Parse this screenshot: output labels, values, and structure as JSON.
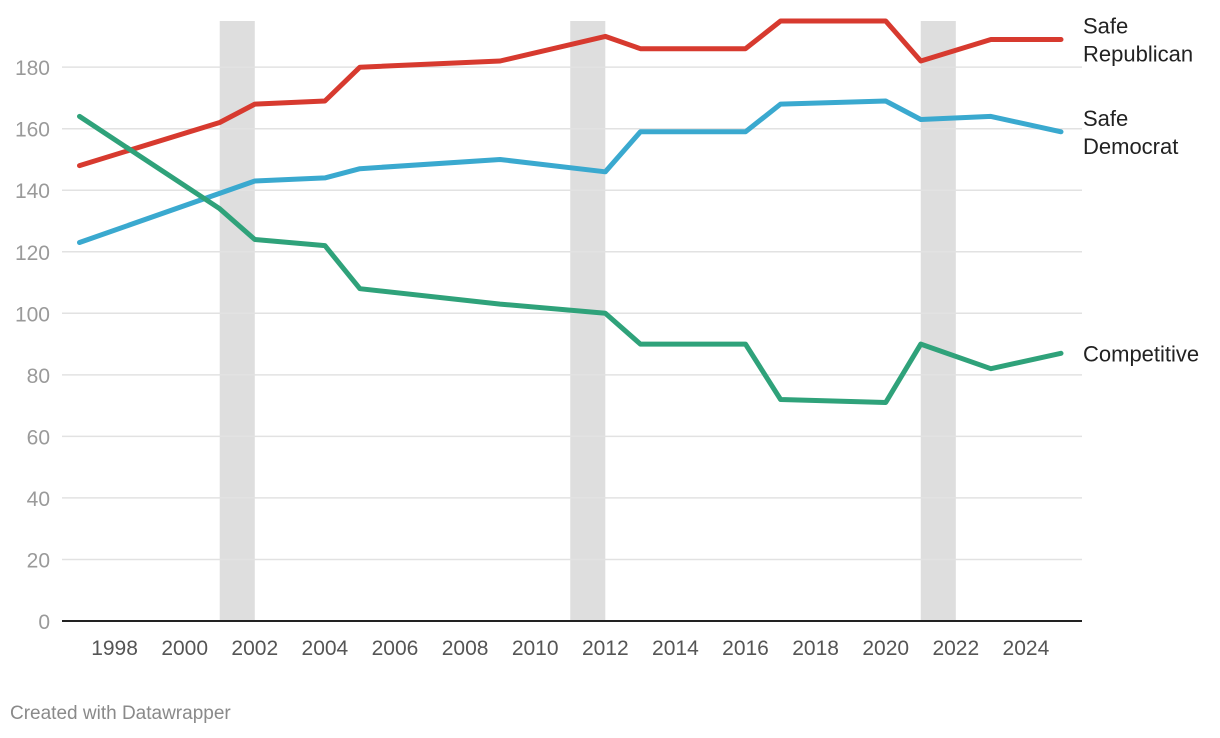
{
  "chart_data": {
    "type": "line",
    "x_ticks": [
      1998,
      2000,
      2002,
      2004,
      2006,
      2008,
      2010,
      2012,
      2014,
      2016,
      2018,
      2020,
      2022,
      2024
    ],
    "y_ticks": [
      0,
      20,
      40,
      60,
      80,
      100,
      120,
      140,
      160,
      180
    ],
    "xlim": [
      1996.5,
      2025.6
    ],
    "ylim": [
      0,
      195
    ],
    "grid": true,
    "highlight_bands": [
      [
        2001,
        2002
      ],
      [
        2011,
        2012
      ],
      [
        2021,
        2022
      ]
    ],
    "series": [
      {
        "name": "Safe Republican",
        "label_lines": [
          "Safe",
          "Republican"
        ],
        "color": "#d73a2f",
        "x": [
          1997,
          2001,
          2002,
          2004,
          2005,
          2009,
          2012,
          2013,
          2016,
          2017,
          2020,
          2021,
          2023,
          2025
        ],
        "y": [
          148,
          162,
          168,
          169,
          180,
          182,
          190,
          186,
          186,
          195,
          195,
          182,
          189,
          189
        ]
      },
      {
        "name": "Safe Democrat",
        "label_lines": [
          "Safe",
          "Democrat"
        ],
        "color": "#3aa9cf",
        "x": [
          1997,
          2002,
          2004,
          2005,
          2009,
          2012,
          2013,
          2016,
          2017,
          2020,
          2021,
          2023,
          2025
        ],
        "y": [
          123,
          143,
          144,
          147,
          150,
          146,
          159,
          159,
          168,
          169,
          163,
          164,
          159
        ]
      },
      {
        "name": "Competitive",
        "label_lines": [
          "Competitive"
        ],
        "color": "#2fa27a",
        "x": [
          1997,
          2001,
          2002,
          2004,
          2005,
          2009,
          2012,
          2013,
          2016,
          2017,
          2020,
          2021,
          2023,
          2025
        ],
        "y": [
          164,
          134,
          124,
          122,
          108,
          103,
          100,
          90,
          90,
          72,
          71,
          90,
          82,
          87
        ]
      }
    ]
  },
  "footer": "Created with Datawrapper"
}
